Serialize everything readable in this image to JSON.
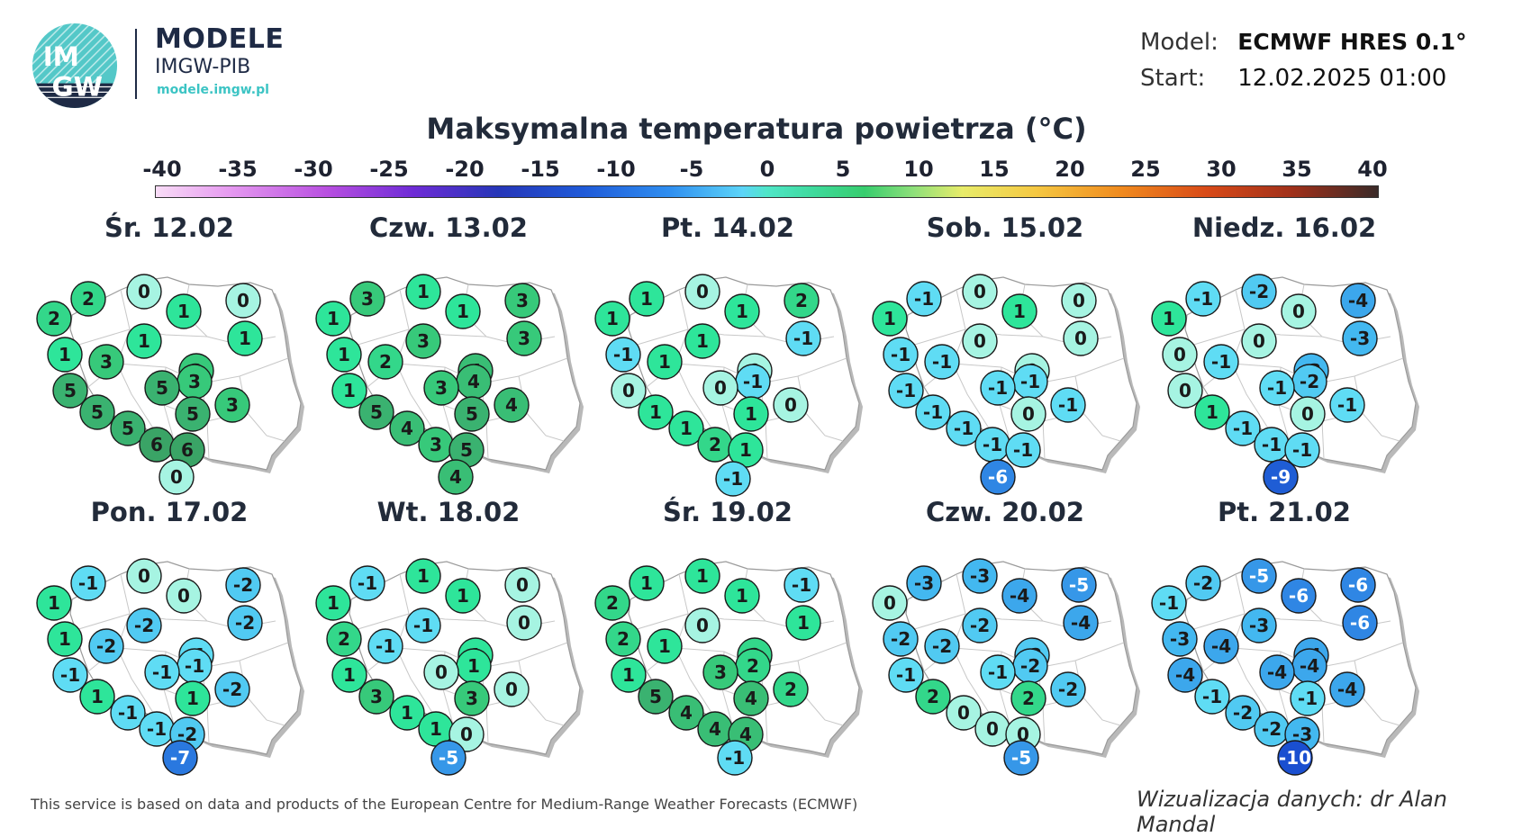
{
  "brand": {
    "logo_text_top": "IM",
    "logo_text_bottom": "GW",
    "title": "MODELE",
    "subtitle": "IMGW-PIB",
    "url": "modele.imgw.pl"
  },
  "meta": {
    "model_label": "Model:",
    "model_value": "ECMWF HRES 0.1°",
    "start_label": "Start:",
    "start_value": "12.02.2025 01:00"
  },
  "title": "Maksymalna temperatura powietrza (°C)",
  "scale": {
    "labels": [
      "-40",
      "-35",
      "-30",
      "-25",
      "-20",
      "-15",
      "-10",
      "-5",
      "0",
      "5",
      "10",
      "15",
      "20",
      "25",
      "30",
      "35",
      "40"
    ],
    "min": -40,
    "max": 40
  },
  "days": [
    {
      "label": "Śr. 12.02",
      "values": [
        2,
        2,
        0,
        0,
        1,
        1,
        1,
        1,
        3,
        3,
        5,
        3,
        5,
        5,
        3,
        5,
        5,
        6,
        6,
        0
      ]
    },
    {
      "label": "Czw. 13.02",
      "values": [
        1,
        3,
        1,
        3,
        1,
        3,
        3,
        1,
        2,
        4,
        1,
        4,
        3,
        5,
        4,
        5,
        4,
        3,
        5,
        4
      ]
    },
    {
      "label": "Pt. 14.02",
      "values": [
        1,
        1,
        0,
        2,
        1,
        -1,
        1,
        -1,
        1,
        0,
        0,
        -1,
        0,
        1,
        0,
        1,
        1,
        2,
        1,
        -1
      ]
    },
    {
      "label": "Sob. 15.02",
      "values": [
        1,
        -1,
        0,
        0,
        1,
        0,
        0,
        -1,
        -1,
        0,
        -1,
        -1,
        -1,
        0,
        -1,
        -1,
        -1,
        -1,
        -1,
        -6
      ]
    },
    {
      "label": "Niedz. 16.02",
      "values": [
        1,
        -1,
        -2,
        -4,
        0,
        -3,
        0,
        0,
        -1,
        -3,
        0,
        -2,
        -1,
        0,
        -1,
        1,
        -1,
        -1,
        -1,
        -9
      ]
    },
    {
      "label": "Pon. 17.02",
      "values": [
        1,
        -1,
        0,
        -2,
        0,
        -2,
        -2,
        1,
        -2,
        -1,
        -1,
        -1,
        -1,
        1,
        -2,
        1,
        -1,
        -1,
        -2,
        -7
      ]
    },
    {
      "label": "Wt. 18.02",
      "values": [
        1,
        -1,
        1,
        0,
        1,
        0,
        -1,
        2,
        -1,
        1,
        1,
        1,
        0,
        3,
        0,
        3,
        1,
        1,
        0,
        -5
      ]
    },
    {
      "label": "Śr. 19.02",
      "values": [
        2,
        1,
        1,
        -1,
        1,
        1,
        0,
        2,
        1,
        2,
        1,
        2,
        3,
        4,
        2,
        5,
        4,
        4,
        4,
        -1
      ]
    },
    {
      "label": "Czw. 20.02",
      "values": [
        0,
        -3,
        -3,
        -5,
        -4,
        -4,
        -2,
        -2,
        -2,
        -2,
        -1,
        -2,
        -1,
        2,
        -2,
        2,
        0,
        0,
        0,
        -5
      ]
    },
    {
      "label": "Pt. 21.02",
      "values": [
        -1,
        -2,
        -5,
        -6,
        -6,
        -6,
        -3,
        -3,
        -4,
        -4,
        -4,
        -4,
        -4,
        -1,
        -4,
        -1,
        -2,
        -2,
        -3,
        -10
      ]
    }
  ],
  "footer": {
    "source": "This service is based on data and products of the European Centre for Medium-Range Weather Forecasts (ECMWF)",
    "credit": "Wizualizacja danych: dr Alan Mandal"
  }
}
